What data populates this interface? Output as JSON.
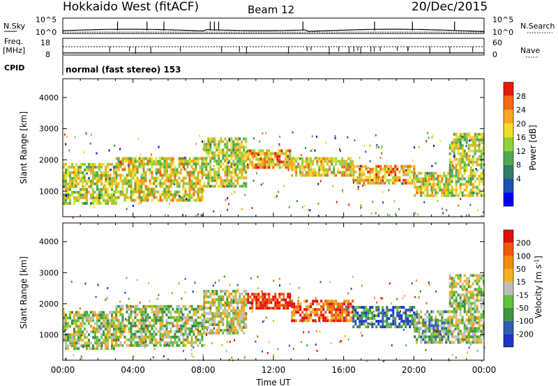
{
  "header": {
    "station": "Hokkaido West (fitACF)",
    "beam": "Beam 12",
    "date": "20/Dec/2015"
  },
  "strips": {
    "nsky_label": "N.Sky",
    "nsky_ticks": [
      "10^5",
      "10^0"
    ],
    "freq_label_1": "Freq.",
    "freq_label_2": "[MHz]",
    "freq_ticks": [
      "18",
      "8"
    ],
    "cpid_label": "CPID",
    "nsearch_label": "N.Search",
    "nsearch_ticks": [
      "10^5",
      "10^0"
    ],
    "nave_label": "Nave",
    "nave_ticks": [
      "60",
      "0"
    ],
    "cpid_text": "normal (fast stereo) 153"
  },
  "chart_data": [
    {
      "type": "heatmap",
      "panel": "power",
      "ylabel": "Slant Range [km]",
      "xlabel": "",
      "ylim": [
        180,
        4600
      ],
      "yticks": [
        "4000",
        "3000",
        "2000",
        "1000"
      ],
      "colorbar": {
        "label": "Power [dB]",
        "ticks": [
          "28",
          "24",
          "20",
          "16",
          "12",
          "8",
          "4"
        ],
        "colors": [
          "#0000ee",
          "#1f4fb0",
          "#2e7d66",
          "#4fa84f",
          "#8fd13a",
          "#f2dd2a",
          "#f6a71f",
          "#f26a12",
          "#e81c0c"
        ]
      },
      "bands": [
        {
          "t0": 0.0,
          "t1": 3.0,
          "r0": 650,
          "r1": 1950,
          "level": 0.55
        },
        {
          "t0": 3.0,
          "t1": 8.0,
          "r0": 750,
          "r1": 2100,
          "level": 0.6
        },
        {
          "t0": 8.0,
          "t1": 10.5,
          "r0": 1200,
          "r1": 2800,
          "level": 0.55
        },
        {
          "t0": 10.5,
          "t1": 13.0,
          "r0": 1800,
          "r1": 2400,
          "level": 0.7
        },
        {
          "t0": 13.0,
          "t1": 16.5,
          "r0": 1550,
          "r1": 2150,
          "level": 0.65
        },
        {
          "t0": 16.5,
          "t1": 20.0,
          "r0": 1300,
          "r1": 1850,
          "level": 0.7
        },
        {
          "t0": 20.0,
          "t1": 22.0,
          "r0": 900,
          "r1": 1700,
          "level": 0.6
        },
        {
          "t0": 22.0,
          "t1": 24.0,
          "r0": 900,
          "r1": 2900,
          "level": 0.55
        }
      ]
    },
    {
      "type": "heatmap",
      "panel": "velocity",
      "ylabel": "Slant Range [km]",
      "xlabel": "Time UT",
      "ylim": [
        180,
        4600
      ],
      "yticks": [
        "4000",
        "3000",
        "2000",
        "1000"
      ],
      "xticks": [
        "00:00",
        "04:00",
        "08:00",
        "12:00",
        "16:00",
        "20:00",
        "00:00"
      ],
      "colorbar": {
        "label": "Velocity [m s",
        "label_sup": "-1",
        "label_end": "]",
        "ticks": [
          "200",
          "100",
          "50",
          "15",
          "-15",
          "-50",
          "-100",
          "-200"
        ],
        "colors": [
          "#1f33c4",
          "#2c5fb0",
          "#3a9440",
          "#62c23a",
          "#bdbdbd",
          "#f3b020",
          "#f38b10",
          "#ee5a08",
          "#e0100a"
        ]
      },
      "bands": [
        {
          "t0": 0.0,
          "t1": 3.0,
          "r0": 600,
          "r1": 1800,
          "level": 0.45
        },
        {
          "t0": 3.0,
          "t1": 8.0,
          "r0": 700,
          "r1": 2000,
          "level": 0.45
        },
        {
          "t0": 8.0,
          "t1": 10.5,
          "r0": 1100,
          "r1": 2500,
          "level": 0.5
        },
        {
          "t0": 10.5,
          "t1": 13.0,
          "r0": 1900,
          "r1": 2400,
          "level": 0.95
        },
        {
          "t0": 13.0,
          "t1": 16.5,
          "r0": 1500,
          "r1": 2200,
          "level": 0.8
        },
        {
          "t0": 16.5,
          "t1": 20.0,
          "r0": 1300,
          "r1": 2000,
          "level": 0.2
        },
        {
          "t0": 20.0,
          "t1": 22.0,
          "r0": 800,
          "r1": 1800,
          "level": 0.35
        },
        {
          "t0": 22.0,
          "t1": 24.0,
          "r0": 800,
          "r1": 3000,
          "level": 0.45
        }
      ]
    }
  ]
}
